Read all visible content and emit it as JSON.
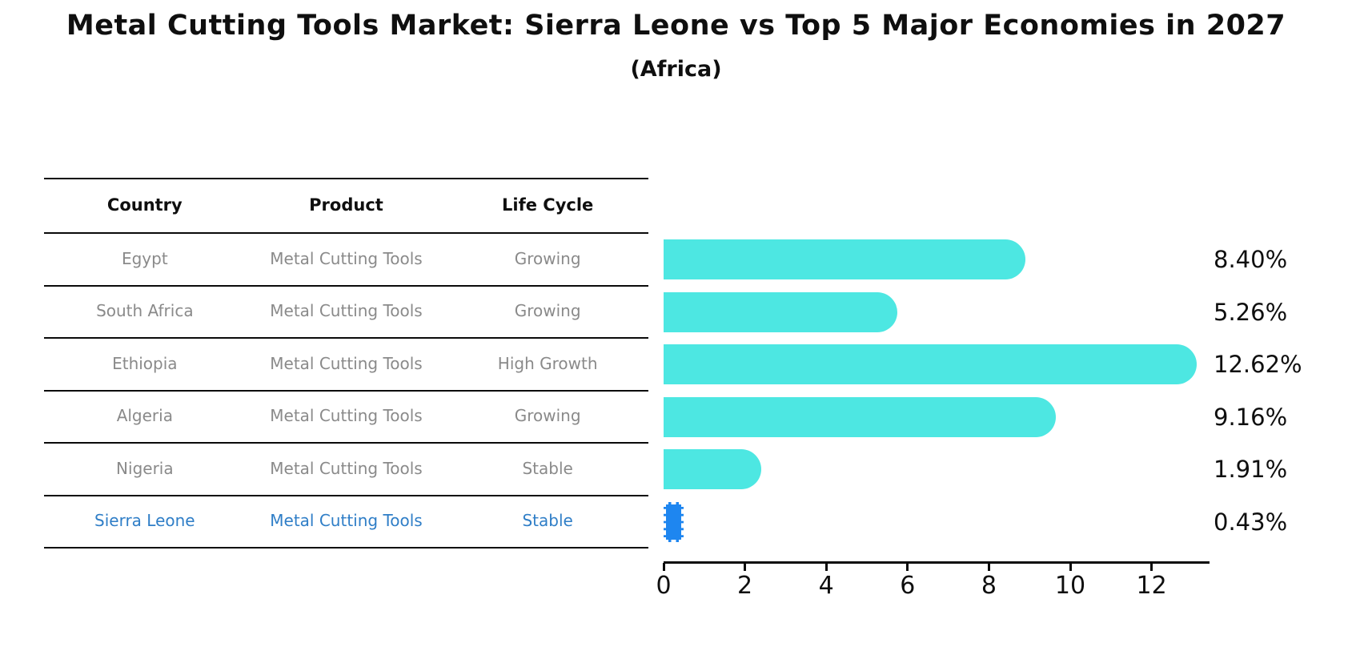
{
  "title": "Metal Cutting Tools Market: Sierra Leone vs Top 5 Major Economies in 2027",
  "subtitle": "(Africa)",
  "table": {
    "headers": [
      "Country",
      "Product",
      "Life Cycle"
    ],
    "rows": [
      {
        "country": "Egypt",
        "product": "Metal Cutting Tools",
        "life_cycle": "Growing"
      },
      {
        "country": "South Africa",
        "product": "Metal Cutting Tools",
        "life_cycle": "Growing"
      },
      {
        "country": "Ethiopia",
        "product": "Metal Cutting Tools",
        "life_cycle": "High Growth"
      },
      {
        "country": "Algeria",
        "product": "Metal Cutting Tools",
        "life_cycle": "Growing"
      },
      {
        "country": "Nigeria",
        "product": "Metal Cutting Tools",
        "life_cycle": "Stable"
      },
      {
        "country": "Sierra Leone",
        "product": "Metal Cutting Tools",
        "life_cycle": "Stable"
      }
    ]
  },
  "chart_data": {
    "type": "bar",
    "orientation": "horizontal",
    "title": "Metal Cutting Tools Market: Sierra Leone vs Top 5 Major Economies in 2027",
    "subtitle": "(Africa)",
    "categories": [
      "Egypt",
      "South Africa",
      "Ethiopia",
      "Algeria",
      "Nigeria",
      "Sierra Leone"
    ],
    "values": [
      8.4,
      5.26,
      12.62,
      9.16,
      1.91,
      0.43
    ],
    "labels": [
      "8.40%",
      "5.26%",
      "12.62%",
      "9.16%",
      "1.91%",
      "0.43%"
    ],
    "unit": "%",
    "xlabel": "",
    "ylabel": "",
    "xlim": [
      0,
      13.35
    ],
    "xticks": [
      0,
      2,
      4,
      6,
      8,
      10,
      12
    ],
    "grid": false,
    "legend": false,
    "bar_color": "#4de7e2",
    "highlight_color": "#1e86f0",
    "highlight_index": 5,
    "text_color_default": "#8a8a8a",
    "text_color_highlight": "#2f7ec7"
  }
}
